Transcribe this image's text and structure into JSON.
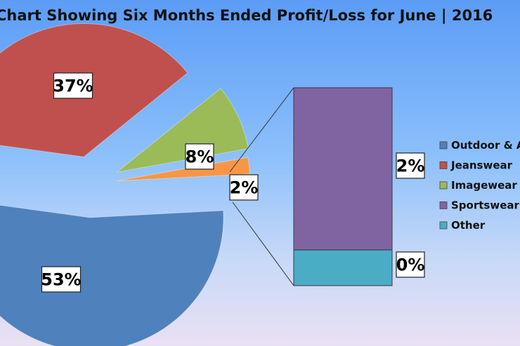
{
  "chart_data": {
    "type": "bar-of-pie",
    "title": "Chart Showing Six Months Ended Profit/Loss for June | 2016",
    "pie": {
      "slices": [
        {
          "name": "Outdoor & A",
          "value": 53,
          "label": "53%",
          "color": "#4f81bd"
        },
        {
          "name": "Jeanswear",
          "value": 37,
          "label": "37%",
          "color": "#c0504d"
        },
        {
          "name": "Imagewear",
          "value": 8,
          "label": "8%",
          "color": "#9bbb59"
        },
        {
          "name": "Other",
          "value": 2,
          "label": "2%",
          "color": "#f79646"
        }
      ]
    },
    "bar": {
      "segments": [
        {
          "name": "Sportswear",
          "value": 2,
          "label": "2%",
          "color": "#8064a2"
        },
        {
          "name": "Other",
          "value": 0,
          "label": "0%",
          "color": "#4bacc6"
        }
      ]
    },
    "legend": {
      "position": "right",
      "items": [
        {
          "name": "Outdoor & A",
          "color": "#4f81bd"
        },
        {
          "name": "Jeanswear",
          "color": "#c0504d"
        },
        {
          "name": "Imagewear",
          "color": "#9bbb59"
        },
        {
          "name": "Sportswear",
          "color": "#8064a2"
        },
        {
          "name": "Other",
          "color": "#4bacc6"
        }
      ]
    }
  }
}
